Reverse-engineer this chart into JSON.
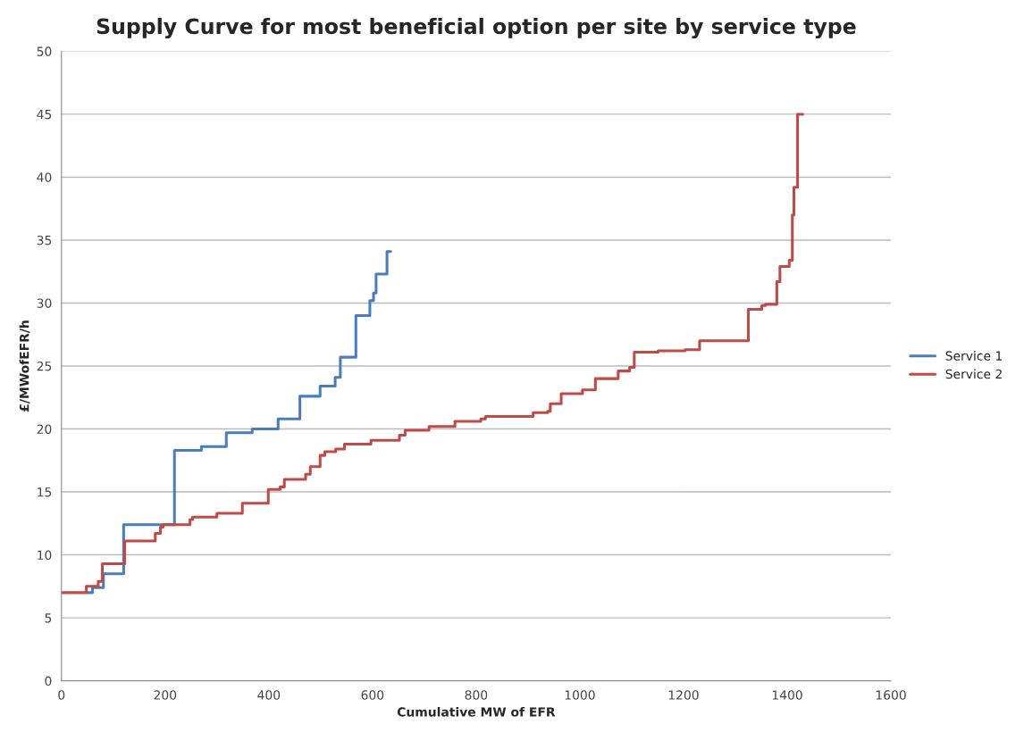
{
  "chart_data": {
    "type": "step",
    "title": "Supply Curve for most beneficial option per site by service type",
    "xlabel": "Cumulative MW of EFR",
    "ylabel": "£/MWofEFR/h",
    "xlim": [
      0,
      1600
    ],
    "xticks": [
      0,
      200,
      400,
      600,
      800,
      1000,
      1200,
      1400,
      1600
    ],
    "ylim": [
      0,
      50
    ],
    "yticks": [
      0,
      5,
      10,
      15,
      20,
      25,
      30,
      35,
      40,
      45,
      50
    ],
    "grid": "y",
    "legend": "right",
    "line_style": "solid",
    "series": [
      {
        "name": "Service 1",
        "color": "#4a7ebb",
        "x": [
          50,
          60,
          81,
          120,
          218,
          270,
          318,
          368,
          418,
          460,
          499,
          528,
          538,
          568,
          595,
          602,
          607,
          628,
          635
        ],
        "values": [
          7.0,
          7.4,
          8.5,
          12.4,
          18.3,
          18.6,
          19.7,
          20.0,
          20.8,
          22.6,
          23.4,
          24.1,
          25.7,
          29.0,
          30.2,
          30.8,
          32.3,
          34.1,
          34.1
        ]
      },
      {
        "name": "Service 2",
        "color": "#be4b48",
        "x": [
          0,
          48,
          71,
          79,
          122,
          181,
          191,
          196,
          248,
          253,
          300,
          349,
          399,
          422,
          430,
          471,
          480,
          499,
          508,
          529,
          546,
          597,
          652,
          663,
          709,
          759,
          809,
          818,
          910,
          938,
          943,
          964,
          1005,
          1030,
          1074,
          1096,
          1105,
          1151,
          1203,
          1231,
          1325,
          1351,
          1358,
          1380,
          1386,
          1404,
          1410,
          1413,
          1420,
          1430
        ],
        "values": [
          7.0,
          7.5,
          7.9,
          9.3,
          11.1,
          11.7,
          12.2,
          12.4,
          12.8,
          13.0,
          13.3,
          14.1,
          15.2,
          15.4,
          16.0,
          16.4,
          17.0,
          17.9,
          18.2,
          18.4,
          18.8,
          19.1,
          19.5,
          19.9,
          20.2,
          20.6,
          20.8,
          21.0,
          21.3,
          21.4,
          22.0,
          22.8,
          23.1,
          24.0,
          24.6,
          24.9,
          26.1,
          26.2,
          26.3,
          27.0,
          29.5,
          29.8,
          29.9,
          31.7,
          32.9,
          33.4,
          37.0,
          39.2,
          45.0,
          45.0
        ]
      }
    ]
  }
}
